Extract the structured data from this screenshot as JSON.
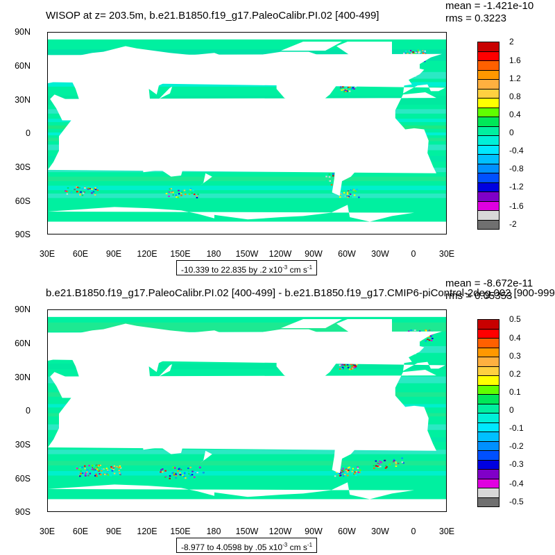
{
  "panels": [
    {
      "title": "WISOP at z= 203.5m, b.e21.B1850.f19_g17.PaleoCalibr.PI.02 [400-499]",
      "mean": "mean = -1.421e-10",
      "rms": "rms = 0.3223",
      "lat_labels": [
        "90N",
        "60N",
        "30N",
        "0",
        "30S",
        "60S",
        "90S"
      ],
      "lon_labels": [
        "30E",
        "60E",
        "90E",
        "120E",
        "150E",
        "180",
        "150W",
        "120W",
        "90W",
        "60W",
        "30W",
        "0",
        "30E"
      ],
      "range_text": "-10.339 to 22.835 by .2 x10",
      "range_exp": "-3",
      "range_unit": " cm s",
      "range_unit_exp": "-1",
      "colorbar_labels": [
        "2",
        "1.6",
        "1.2",
        "0.8",
        "0.4",
        "0",
        "-0.4",
        "-0.8",
        "-1.2",
        "-1.6",
        "-2"
      ]
    },
    {
      "title": "b.e21.B1850.f19_g17.PaleoCalibr.PI.02 [400-499] - b.e21.B1850.f19_g17.CMIP6-piControl-2deg.002 [900-999]",
      "mean": "mean = -8.672e-11",
      "rms": "rms = 0.05353",
      "lat_labels": [
        "90N",
        "60N",
        "30N",
        "0",
        "30S",
        "60S",
        "90S"
      ],
      "lon_labels": [
        "30E",
        "60E",
        "90E",
        "120E",
        "150E",
        "180",
        "150W",
        "120W",
        "90W",
        "60W",
        "30W",
        "0",
        "30E"
      ],
      "range_text": "-8.977 to 4.0598 by .05 x10",
      "range_exp": "-3",
      "range_unit": " cm s",
      "range_unit_exp": "-1",
      "colorbar_labels": [
        "0.5",
        "0.4",
        "0.3",
        "0.2",
        "0.1",
        "0",
        "-0.1",
        "-0.2",
        "-0.3",
        "-0.4",
        "-0.5"
      ]
    }
  ],
  "colors": {
    "ocean_base": "#00f0a0",
    "ocean_alt": "#30e8c8",
    "land": "#ffffff",
    "palette": [
      "#c80000",
      "#ff0000",
      "#ff6000",
      "#ff9800",
      "#ffb040",
      "#ffd040",
      "#ffff00",
      "#60ff00",
      "#00e858",
      "#00f0a0",
      "#00f0d8",
      "#00e8ff",
      "#00c0ff",
      "#0090ff",
      "#0050ff",
      "#0000e0",
      "#8000c8",
      "#e000e0",
      "#d8d8d8",
      "#707070"
    ]
  }
}
